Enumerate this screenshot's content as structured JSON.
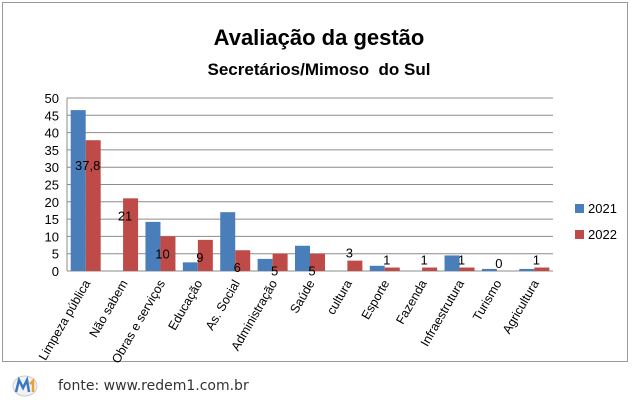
{
  "chart_data": {
    "type": "bar",
    "title": "Avaliação da gestão",
    "subtitle": "Secretários/Mimoso  do Sul",
    "categories": [
      "Limpeza pública",
      "Não sabem",
      "Obras e serviços",
      "Educação",
      "As. Social",
      "Administração",
      "Saúde",
      "cultura",
      "Esporte",
      "Fazenda",
      "Infraestrutura",
      "Turismo",
      "Agricultura"
    ],
    "series": [
      {
        "name": "2021",
        "color": "#4a7ebb",
        "values": [
          46.5,
          0,
          14.2,
          2.5,
          17,
          3.5,
          7.3,
          0,
          1.5,
          0,
          4.5,
          0.6,
          0.6
        ]
      },
      {
        "name": "2022",
        "color": "#be4b48",
        "values": [
          37.8,
          21,
          10,
          9,
          6,
          5,
          5,
          3,
          1,
          1,
          1,
          0,
          1
        ]
      }
    ],
    "data_labels_2022": [
      "37,8",
      "21",
      "10",
      "9",
      "6",
      "5",
      "5",
      "3",
      "1",
      "1",
      "1",
      "0",
      "1"
    ],
    "ylim": [
      0,
      50
    ],
    "yticks": [
      0,
      5,
      10,
      15,
      20,
      25,
      30,
      35,
      40,
      45,
      50
    ],
    "grid": true,
    "legend": "right"
  },
  "footer": {
    "source": "fonte: www.redem1.com.br",
    "logo_icon": "redem1-logo"
  }
}
